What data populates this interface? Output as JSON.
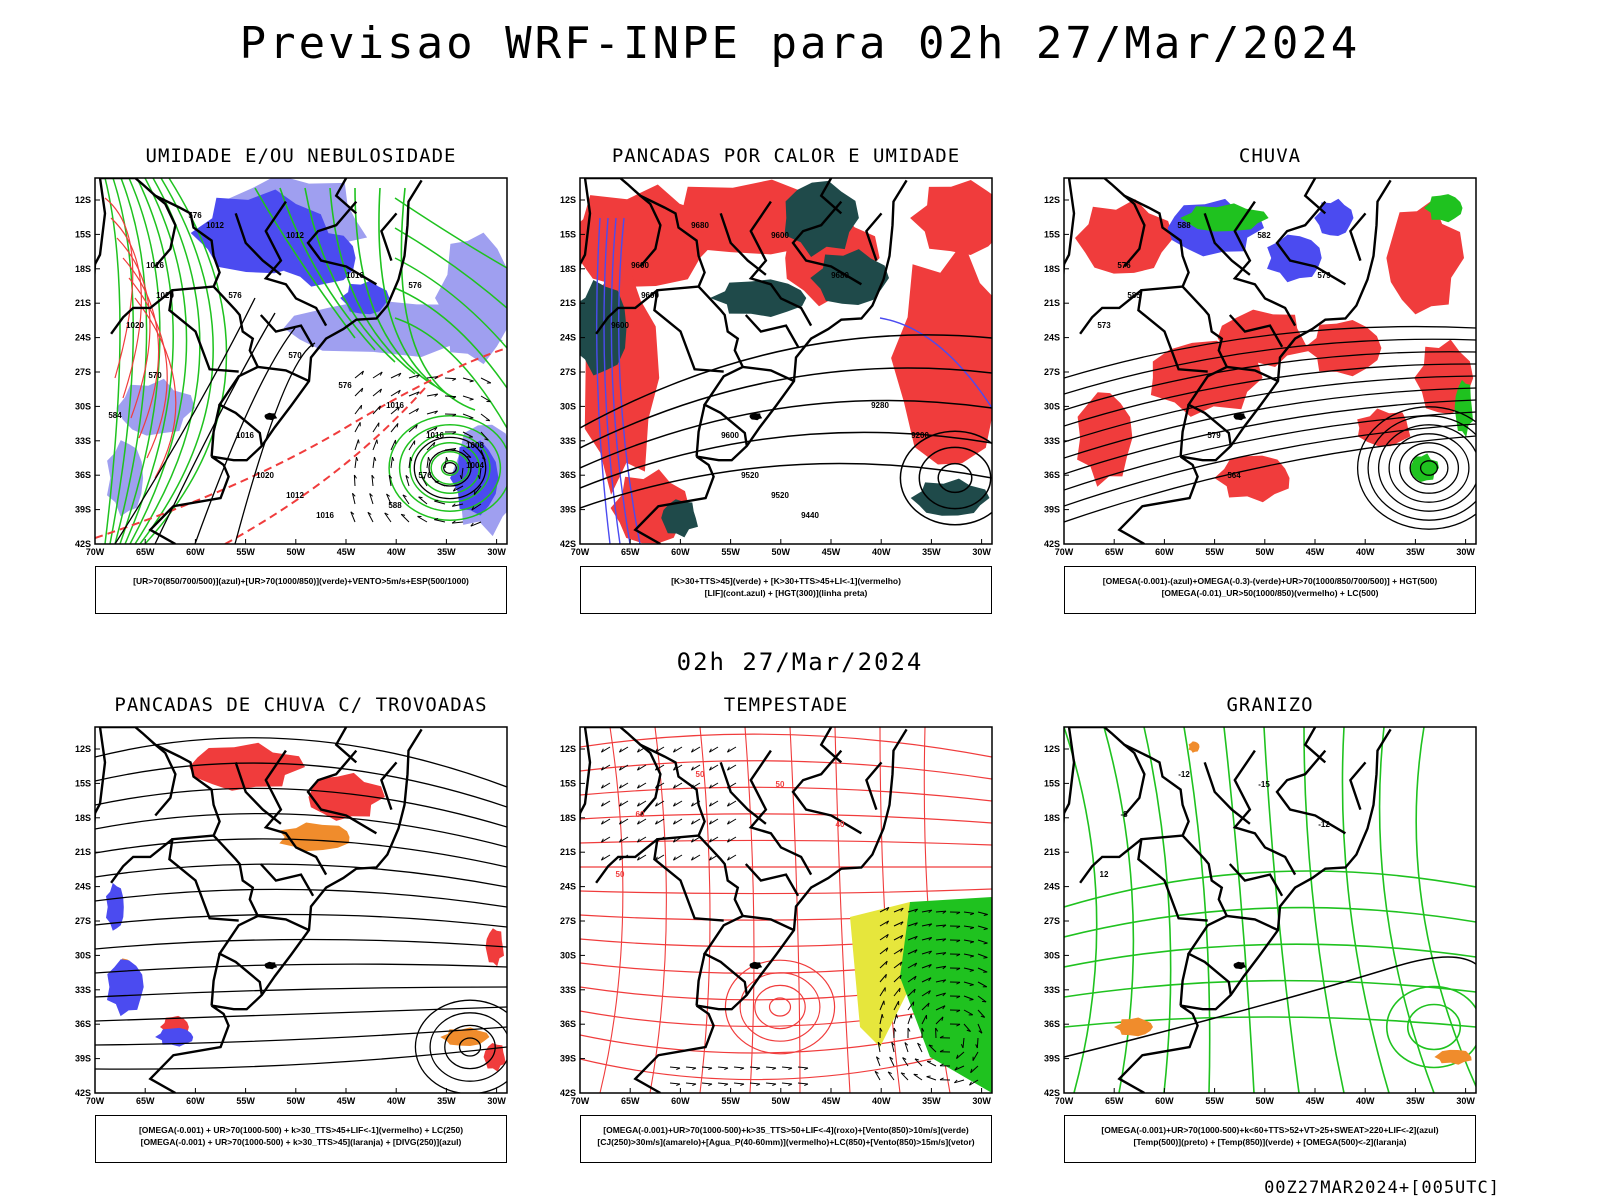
{
  "title": "Previsao WRF-INPE  para 02h 27/Mar/2024",
  "middle_date": "02h 27/Mar/2024",
  "footer_run": "00Z27MAR2024+[005UTC]",
  "axes": {
    "lat_labels": [
      "12S",
      "15S",
      "18S",
      "21S",
      "24S",
      "27S",
      "30S",
      "33S",
      "36S",
      "39S",
      "42S"
    ],
    "lon_labels": [
      "70W",
      "65W",
      "60W",
      "55W",
      "50W",
      "45W",
      "40W",
      "35W",
      "30W"
    ]
  },
  "colors": {
    "red": "#f03c3c",
    "green": "#1fc21f",
    "blue": "#4b4bf0",
    "lightblue": "#9f9ff0",
    "darkteal": "#1f4a4a",
    "orange": "#f08c2c",
    "yellow": "#e6e63c"
  },
  "panels": [
    {
      "id": "umidade",
      "title": "UMIDADE E/OU NEBULOSIDADE",
      "legend": [
        "[UR>70(850/700/500)](azul)+[UR>70(1000/850)](verde)+VENTO>5m/s+ESP(500/1000)"
      ],
      "labels": [
        "1012",
        "1012",
        "1016",
        "1016",
        "1020",
        "1020",
        "1016",
        "1020",
        "1012",
        "1016",
        "1016",
        "1016",
        "1008",
        "1004",
        "576",
        "576",
        "576",
        "576",
        "576",
        "570",
        "584",
        "588",
        "570"
      ]
    },
    {
      "id": "pancadas_calor",
      "title": "PANCADAS POR CALOR E UMIDADE",
      "legend": [
        "[K>30+TTS>45](verde) + [K>30+TTS>45+LI<-1](vermelho)",
        "[LIF](cont.azul) + [HGT(300)](linha preta)"
      ],
      "labels": [
        "9680",
        "9600",
        "9680",
        "9600",
        "9600",
        "9600",
        "9600",
        "9520",
        "9520",
        "9440",
        "9280",
        "9200"
      ]
    },
    {
      "id": "chuva",
      "title": "CHUVA",
      "legend": [
        "[OMEGA(-0.001)-(azul)+OMEGA(-0.3)-(verde)+UR>70(1000/850/700/500)] + HGT(500)",
        "[OMEGA(-0.01)_UR>50(1000/850)(vermelho) + LC(500)"
      ],
      "labels": [
        "588",
        "582",
        "579",
        "576",
        "573",
        "585",
        "579",
        "564"
      ]
    },
    {
      "id": "pancadas_trovoadas",
      "title": "PANCADAS DE CHUVA C/ TROVOADAS",
      "legend": [
        "[OMEGA(-0.001) + UR>70(1000-500) + k>30_TTS>45+LIF<-1](vermelho) + LC(250)",
        "[OMEGA(-0.001) + UR>70(1000-500) + k>30_TTS>45](laranja) + [DIVG(250)](azul)"
      ],
      "labels": []
    },
    {
      "id": "tempestade",
      "title": "TEMPESTADE",
      "legend": [
        "[OMEGA(-0.001)+UR>70(1000-500)+k>35_TTS>50+LIF<-4](roxo)+[Vento(850)>10m/s](verde)",
        "[CJ(250)>30m/s](amarelo)+[Agua_P(40-60mm)](vermelho)+LC(850)+[Vento(850)>15m/s](vetor)"
      ],
      "labels": [
        "50",
        "50",
        "40",
        "60",
        "50"
      ]
    },
    {
      "id": "granizo",
      "title": "GRANIZO",
      "legend": [
        "[OMEGA(-0.001)+UR>70(1000-500)+k<60+TTS>52+VT>25+SWEAT>220+LIF<-2](azul)",
        "[Temp(500)](preto) + [Temp(850)](verde) + [OMEGA(500)<-2](laranja)"
      ],
      "labels": [
        "-12",
        "-15",
        "-12",
        "-8",
        "12"
      ]
    }
  ]
}
